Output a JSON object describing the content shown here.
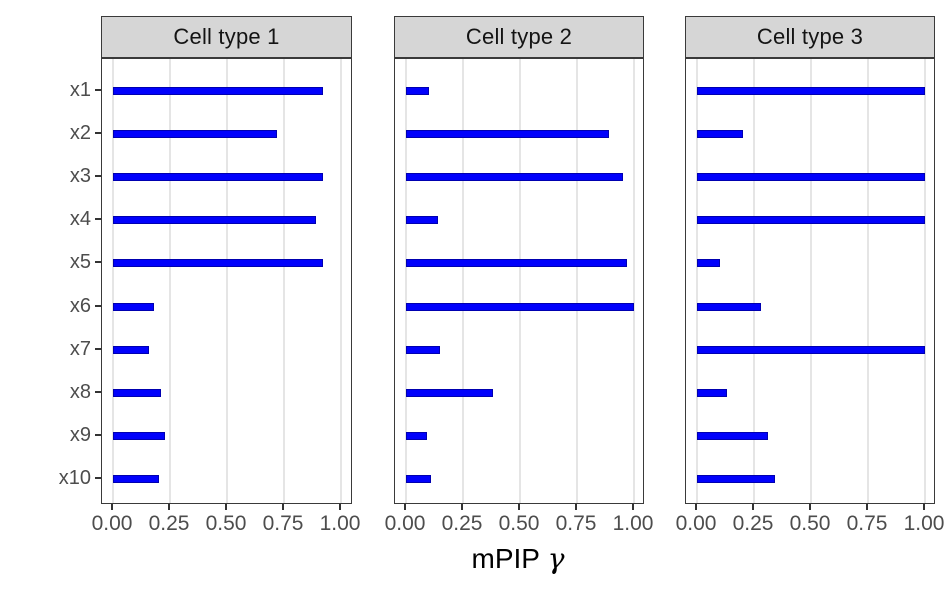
{
  "chart_data": {
    "type": "bar",
    "orientation": "horizontal",
    "xlabel": "mPIP γ",
    "xlabel_main": "mPIP",
    "xlabel_symbol": "γ",
    "xlim": [
      0,
      1
    ],
    "x_tick_values": [
      0,
      0.25,
      0.5,
      0.75,
      1
    ],
    "x_tick_labels": [
      "0.00",
      "0.25",
      "0.50",
      "0.75",
      "1.00"
    ],
    "categories": [
      "x1",
      "x2",
      "x3",
      "x4",
      "x5",
      "x6",
      "x7",
      "x8",
      "x9",
      "x10"
    ],
    "facets": [
      {
        "title": "Cell type 1",
        "values": [
          0.92,
          0.72,
          0.92,
          0.89,
          0.92,
          0.18,
          0.16,
          0.21,
          0.23,
          0.2
        ]
      },
      {
        "title": "Cell type 2",
        "values": [
          0.1,
          0.89,
          0.95,
          0.14,
          0.97,
          1.0,
          0.15,
          0.38,
          0.09,
          0.11
        ]
      },
      {
        "title": "Cell type 3",
        "values": [
          1.0,
          0.2,
          1.0,
          1.0,
          0.1,
          0.28,
          1.0,
          0.13,
          0.31,
          0.34
        ]
      }
    ],
    "grid": "vertical-major-only",
    "legend": "none",
    "colors": {
      "bar_fill": "#0101FC",
      "bar_border": "#0000B0",
      "gridline": "#E5E5E5",
      "panel_border": "#3A3A3A",
      "strip_bg": "#D6D6D6",
      "tick_text": "#4D4D4D",
      "strip_text": "#141414"
    }
  }
}
